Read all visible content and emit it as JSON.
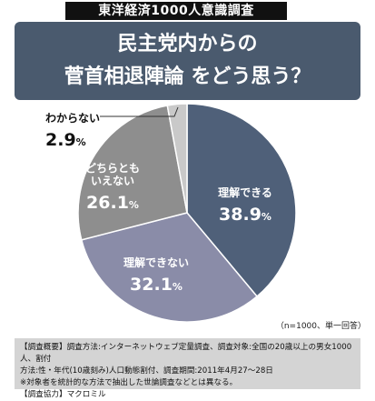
{
  "banner": {
    "tag": "東洋経済1000人意識調査"
  },
  "heading": {
    "line1": "民主党内からの",
    "line2": "菅首相退陣論 をどう思う？"
  },
  "chart_data": {
    "type": "pie",
    "slices": [
      {
        "label": "理解できる",
        "value": 38.9,
        "display": "38.9",
        "unit": "%",
        "color": "#4f6079"
      },
      {
        "label": "理解できない",
        "value": 32.1,
        "display": "32.1",
        "unit": "%",
        "color": "#8a8ca8"
      },
      {
        "label": "どちらとも\nいえない",
        "value": 26.1,
        "display": "26.1",
        "unit": "%",
        "color": "#8e8e8e"
      },
      {
        "label": "わからない",
        "value": 2.9,
        "display": "2.9",
        "unit": "%",
        "color": "#c9c9c9"
      }
    ],
    "note": "（n=1000、単一回答）"
  },
  "footer": {
    "line1": "【調査概要】調査方法:インターネットウェブ定量調査、調査対象:全国の20歳以上の男女1000人、割付",
    "line2": "方法:性・年代(10歳刻み)人口動態割付、調査期間:2011年4月27〜28日",
    "line3": "※対象者を統計的な方法で抽出した世論調査などとは異なる。",
    "line4": "【調査協力】マクロミル"
  }
}
